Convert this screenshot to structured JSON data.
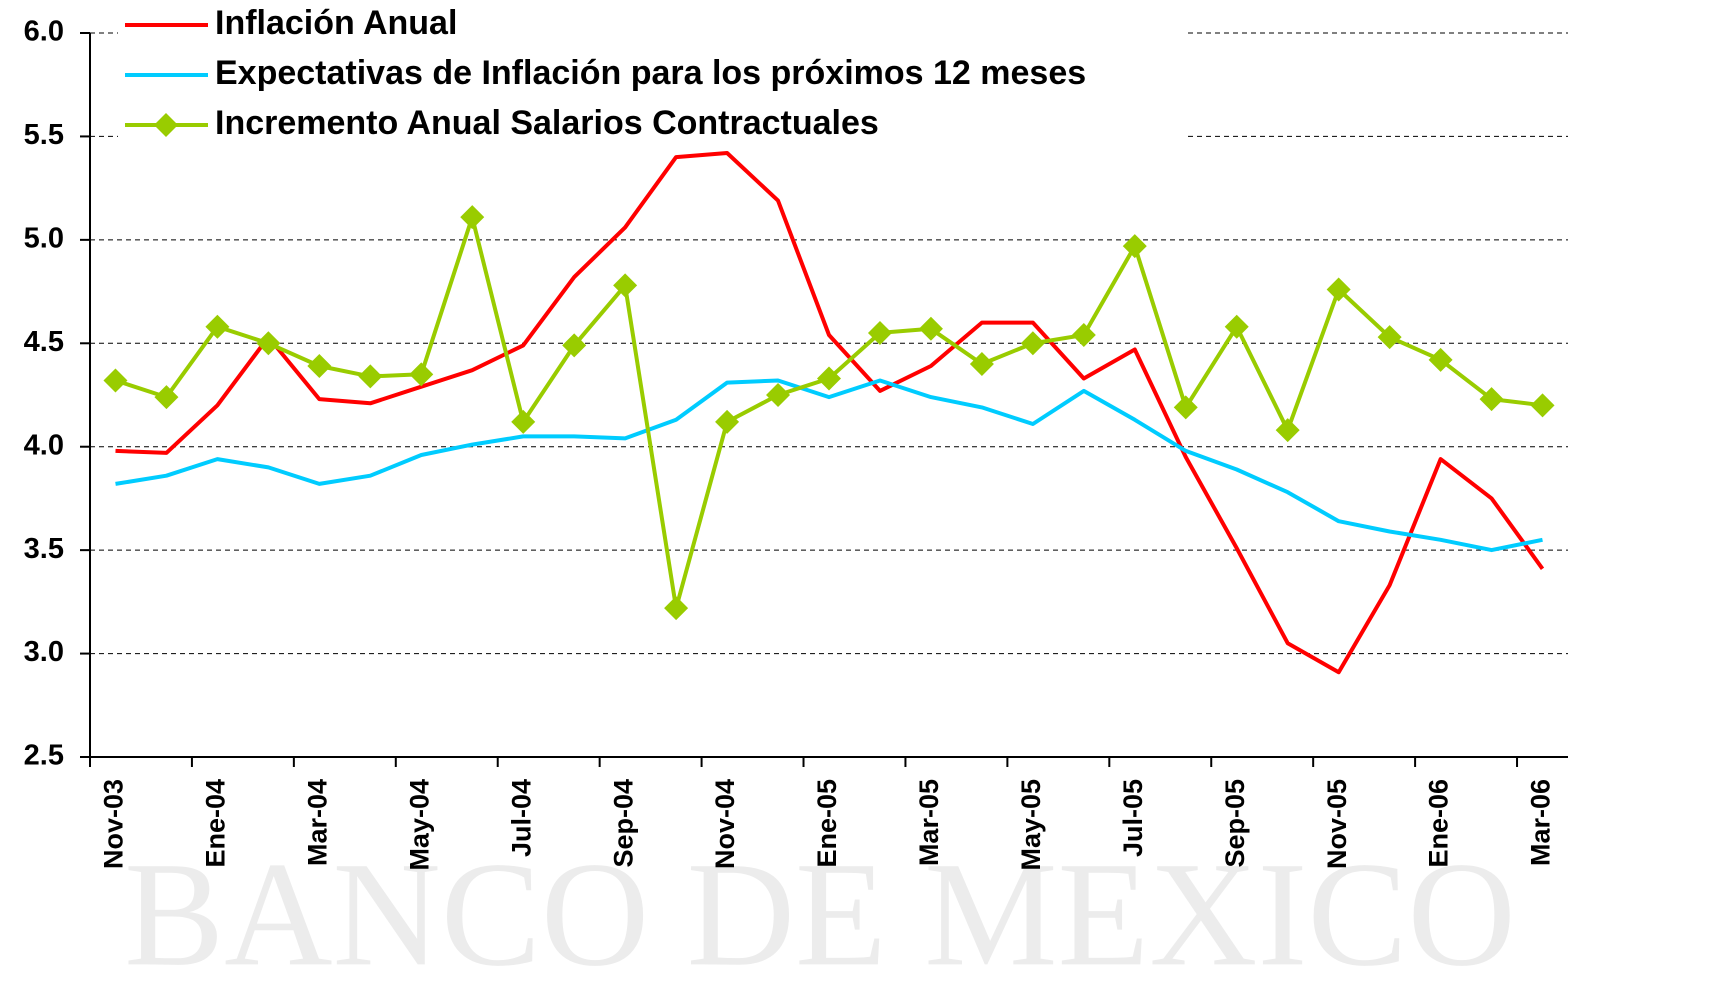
{
  "chart_data": {
    "type": "line",
    "watermark": "BANCO DE MEXICO",
    "categories": [
      "Nov-03",
      null,
      "Ene-04",
      null,
      "Mar-04",
      null,
      "May-04",
      null,
      "Jul-04",
      null,
      "Sep-04",
      null,
      "Nov-04",
      null,
      "Ene-05",
      null,
      "Mar-05",
      null,
      "May-05",
      null,
      "Jul-05",
      null,
      "Sep-05",
      null,
      "Nov-05",
      null,
      "Ene-06",
      null,
      "Mar-06"
    ],
    "series": [
      {
        "name": "Inflación Anual",
        "color": "#ff0000",
        "marker": "none",
        "values": [
          3.98,
          3.97,
          4.2,
          4.53,
          4.23,
          4.21,
          4.29,
          4.37,
          4.49,
          4.82,
          5.06,
          5.4,
          5.42,
          5.19,
          4.54,
          4.27,
          4.39,
          4.6,
          4.6,
          4.33,
          4.47,
          3.95,
          3.51,
          3.05,
          2.91,
          3.33,
          3.94,
          3.75,
          3.41
        ]
      },
      {
        "name": "Expectativas de Inflación para los próximos 12 meses",
        "color": "#00ccff",
        "marker": "none",
        "values": [
          3.82,
          3.86,
          3.94,
          3.9,
          3.82,
          3.86,
          3.96,
          4.01,
          4.05,
          4.05,
          4.04,
          4.13,
          4.31,
          4.32,
          4.24,
          4.32,
          4.24,
          4.19,
          4.11,
          4.27,
          4.13,
          3.98,
          3.89,
          3.78,
          3.64,
          3.59,
          3.55,
          3.5,
          3.55
        ]
      },
      {
        "name": "Incremento Anual Salarios Contractuales",
        "color": "#99cc00",
        "marker": "diamond",
        "values": [
          4.32,
          4.24,
          4.58,
          4.5,
          4.39,
          4.34,
          4.35,
          5.11,
          4.12,
          4.49,
          4.78,
          3.22,
          4.12,
          4.25,
          4.33,
          4.55,
          4.57,
          4.4,
          4.5,
          4.54,
          4.97,
          4.19,
          4.58,
          4.08,
          4.76,
          4.53,
          4.42,
          4.23,
          4.2
        ]
      }
    ],
    "ylim": [
      2.5,
      6.0
    ],
    "yticks": [
      2.5,
      {
        "value": 3,
        "label": "3.0"
      },
      3.5,
      {
        "value": 4,
        "label": "4.0"
      },
      4.5,
      {
        "value": 5,
        "label": "5.0"
      },
      5.5,
      {
        "value": 6,
        "label": "6.0"
      }
    ],
    "grid": true
  }
}
